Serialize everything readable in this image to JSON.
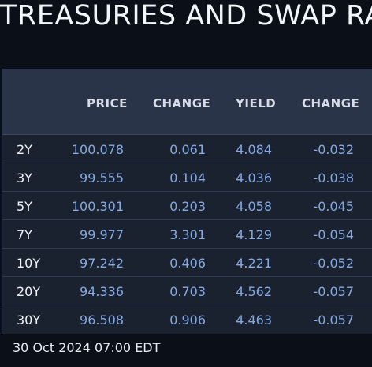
{
  "title": "TREASURIES AND SWAP RA",
  "table": {
    "headers": [
      "PRICE",
      "CHANGE",
      "YIELD",
      "CHANGE"
    ],
    "rows": [
      {
        "tenor": "2Y",
        "price": "100.078",
        "change": "0.061",
        "yield": "4.084",
        "ychange": "-0.032"
      },
      {
        "tenor": "3Y",
        "price": "99.555",
        "change": "0.104",
        "yield": "4.036",
        "ychange": "-0.038"
      },
      {
        "tenor": "5Y",
        "price": "100.301",
        "change": "0.203",
        "yield": "4.058",
        "ychange": "-0.045"
      },
      {
        "tenor": "7Y",
        "price": "99.977",
        "change": "3.301",
        "yield": "4.129",
        "ychange": "-0.054"
      },
      {
        "tenor": "10Y",
        "price": "97.242",
        "change": "0.406",
        "yield": "4.221",
        "ychange": "-0.052"
      },
      {
        "tenor": "20Y",
        "price": "94.336",
        "change": "0.703",
        "yield": "4.562",
        "ychange": "-0.057"
      },
      {
        "tenor": "30Y",
        "price": "96.508",
        "change": "0.906",
        "yield": "4.463",
        "ychange": "-0.057"
      }
    ]
  },
  "footer": {
    "timestamp": "30 Oct 2024 07:00 EDT"
  },
  "colors": {
    "background": "#0b0f18",
    "header": "#293449",
    "row": "#1a2230",
    "value": "#86a9e2"
  }
}
